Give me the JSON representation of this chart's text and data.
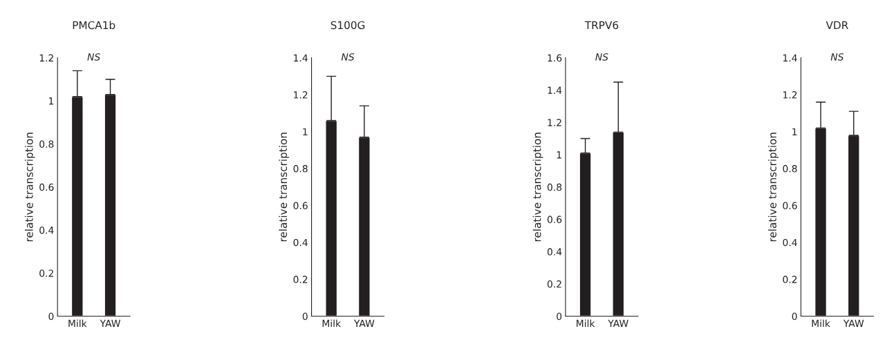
{
  "chart_data": [
    {
      "type": "bar",
      "title": "PMCA1b",
      "ylabel": "relative transcription",
      "categories": [
        "Milk",
        "YAW"
      ],
      "values": [
        1.02,
        1.03
      ],
      "errors": [
        [
          1.02,
          1.14
        ],
        [
          1.03,
          1.1
        ]
      ],
      "color": "#231f20",
      "ylim": [
        0,
        1.2
      ],
      "yticks": [
        0,
        0.2,
        0.4,
        0.6,
        0.8,
        1,
        1.2
      ],
      "annotations": [
        "NS"
      ]
    },
    {
      "type": "bar",
      "title": "S100G",
      "ylabel": "relative transcription",
      "categories": [
        "Milk",
        "YAW"
      ],
      "values": [
        1.06,
        0.97
      ],
      "errors": [
        [
          1.06,
          1.3
        ],
        [
          0.97,
          1.14
        ]
      ],
      "color": "#231f20",
      "ylim": [
        0,
        1.4
      ],
      "yticks": [
        0,
        0.2,
        0.4,
        0.6,
        0.8,
        1,
        1.2,
        1.4
      ],
      "annotations": [
        "NS"
      ]
    },
    {
      "type": "bar",
      "title": "TRPV6",
      "ylabel": "relative transcription",
      "categories": [
        "Milk",
        "YAW"
      ],
      "values": [
        1.01,
        1.14
      ],
      "errors": [
        [
          1.01,
          1.1
        ],
        [
          1.14,
          1.45
        ]
      ],
      "color": "#231f20",
      "ylim": [
        0,
        1.6
      ],
      "yticks": [
        0,
        0.2,
        0.4,
        0.6,
        0.8,
        1,
        1.2,
        1.4,
        1.6
      ],
      "annotations": [
        "NS"
      ]
    },
    {
      "type": "bar",
      "title": "VDR",
      "ylabel": "relative transcription",
      "categories": [
        "Milk",
        "YAW"
      ],
      "values": [
        1.02,
        0.98
      ],
      "errors": [
        [
          1.02,
          1.16
        ],
        [
          0.98,
          1.11
        ]
      ],
      "color": "#231f20",
      "ylim": [
        0,
        1.4
      ],
      "yticks": [
        0,
        0.2,
        0.4,
        0.6,
        0.8,
        1,
        1.2,
        1.4
      ],
      "annotations": [
        "NS"
      ]
    }
  ]
}
